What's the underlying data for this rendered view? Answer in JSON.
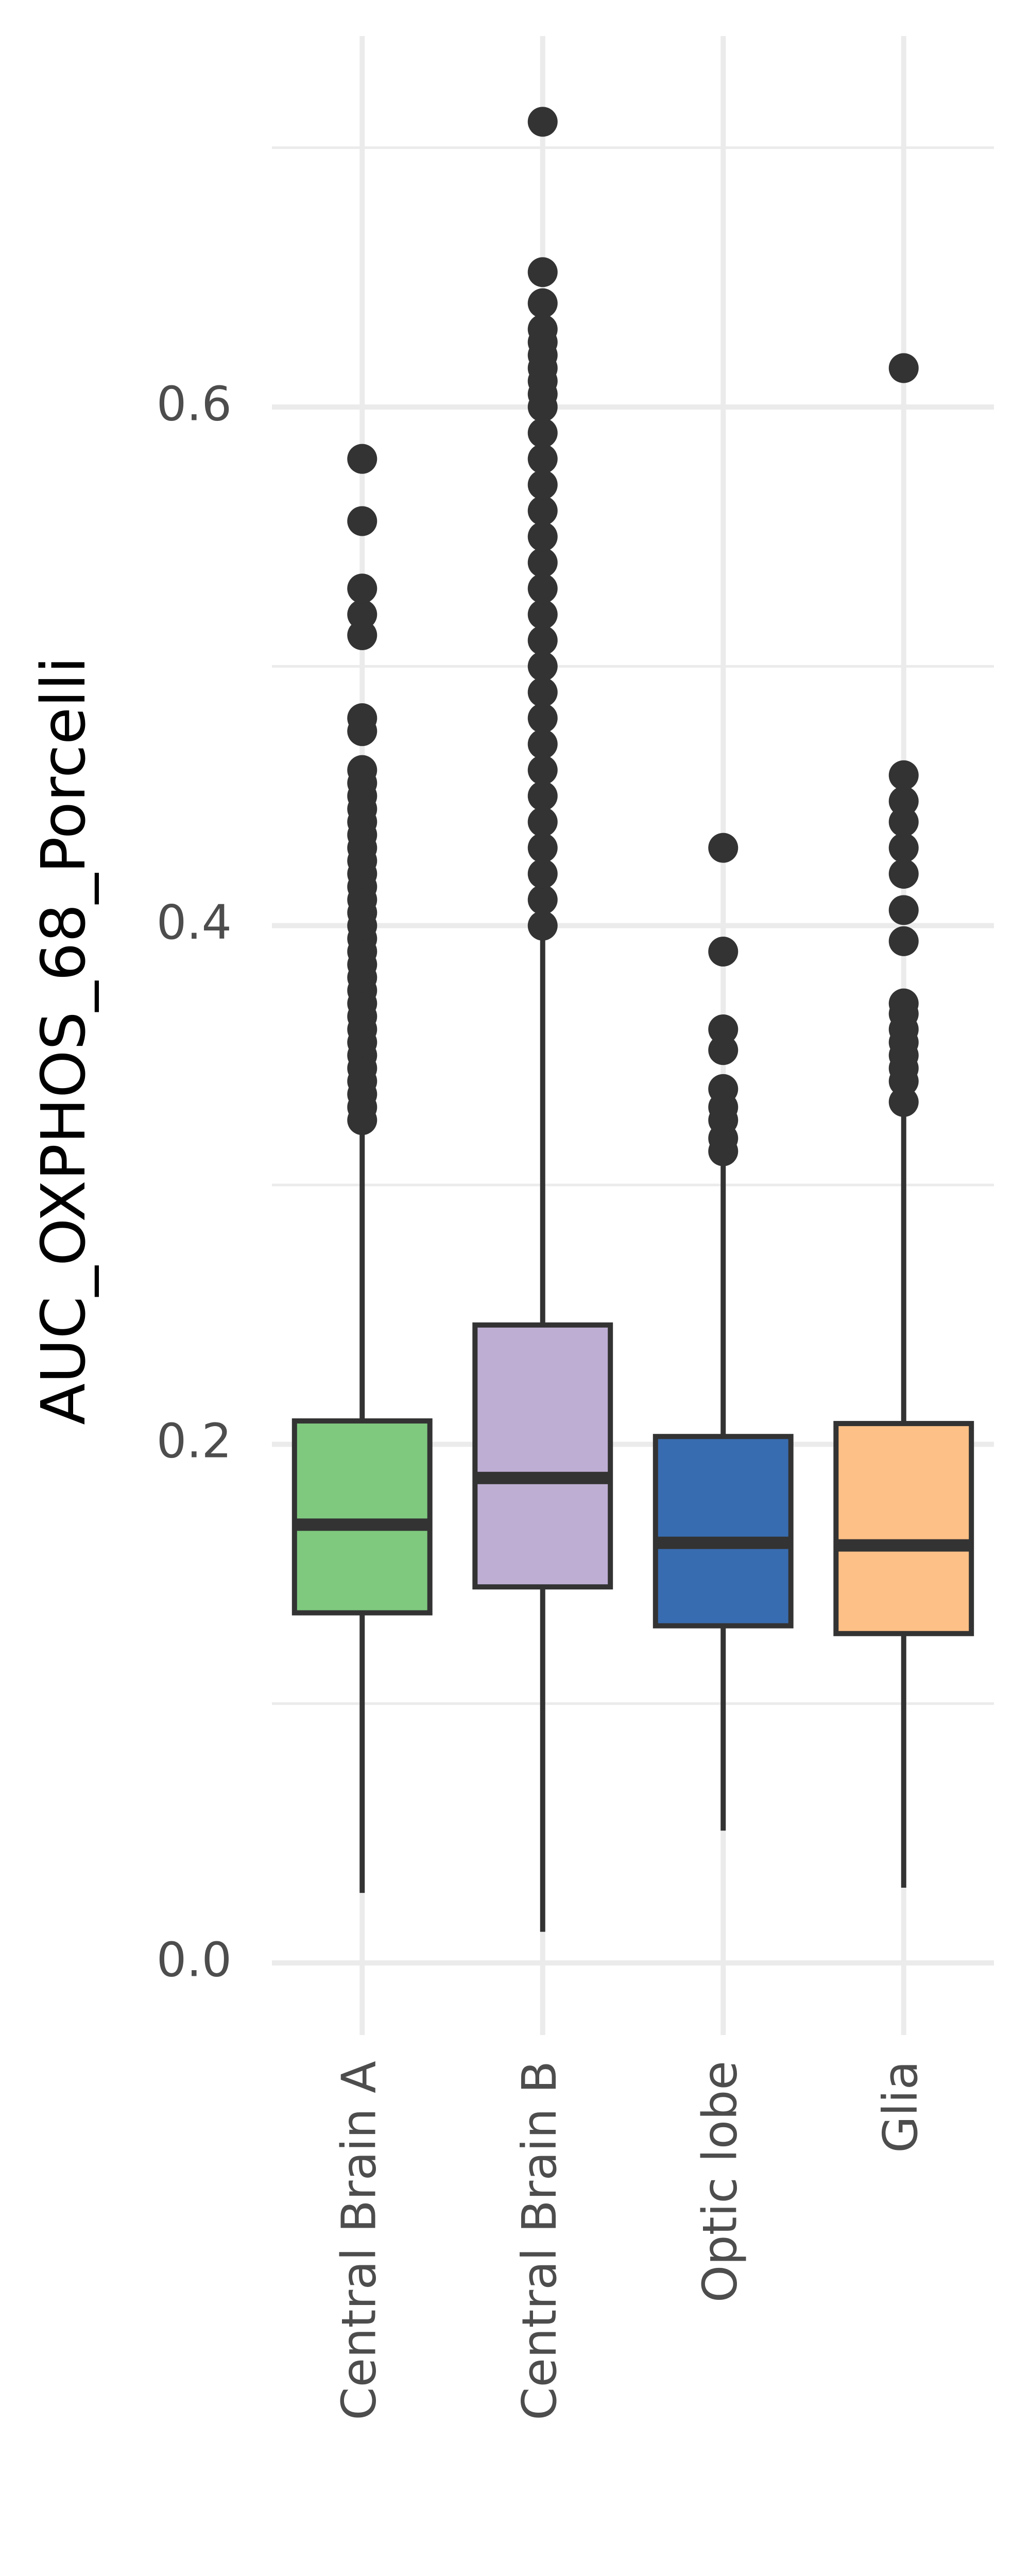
{
  "chart_data": {
    "type": "boxplot",
    "ylabel": "AUC_OXPHOS_68_Porcelli",
    "xlabel": "",
    "ylim": [
      -0.03,
      0.74
    ],
    "yticks": [
      0.0,
      0.2,
      0.4,
      0.6
    ],
    "ytick_labels": [
      "0.0",
      "0.2",
      "0.4",
      "0.6"
    ],
    "grid": true,
    "legend": "none",
    "categories": [
      "Central Brain A",
      "Central Brain B",
      "Optic lobe",
      "Glia"
    ],
    "colors": [
      "#7fc97f",
      "#beaed4",
      "#386cb0",
      "#fdc086"
    ],
    "boxes": [
      {
        "whisker_low": 0.027,
        "q1": 0.135,
        "median": 0.169,
        "q3": 0.209,
        "whisker_high": 0.32,
        "outliers": [
          0.325,
          0.33,
          0.335,
          0.34,
          0.345,
          0.35,
          0.355,
          0.36,
          0.365,
          0.37,
          0.375,
          0.38,
          0.385,
          0.39,
          0.395,
          0.4,
          0.405,
          0.41,
          0.415,
          0.42,
          0.425,
          0.43,
          0.435,
          0.44,
          0.445,
          0.45,
          0.455,
          0.46,
          0.475,
          0.48,
          0.512,
          0.52,
          0.53,
          0.556,
          0.58
        ]
      },
      {
        "whisker_low": 0.012,
        "q1": 0.145,
        "median": 0.187,
        "q3": 0.246,
        "whisker_high": 0.395,
        "outliers": [
          0.4,
          0.41,
          0.42,
          0.43,
          0.44,
          0.45,
          0.46,
          0.47,
          0.48,
          0.49,
          0.5,
          0.51,
          0.52,
          0.53,
          0.54,
          0.55,
          0.56,
          0.57,
          0.58,
          0.59,
          0.6,
          0.605,
          0.61,
          0.615,
          0.62,
          0.625,
          0.63,
          0.64,
          0.652,
          0.71
        ]
      },
      {
        "whisker_low": 0.051,
        "q1": 0.13,
        "median": 0.162,
        "q3": 0.203,
        "whisker_high": 0.31,
        "outliers": [
          0.313,
          0.318,
          0.325,
          0.33,
          0.337,
          0.352,
          0.36,
          0.39,
          0.43
        ]
      },
      {
        "whisker_low": 0.029,
        "q1": 0.127,
        "median": 0.161,
        "q3": 0.208,
        "whisker_high": 0.33,
        "outliers": [
          0.332,
          0.34,
          0.345,
          0.35,
          0.355,
          0.36,
          0.366,
          0.37,
          0.394,
          0.406,
          0.42,
          0.43,
          0.44,
          0.448,
          0.458,
          0.615
        ]
      }
    ]
  }
}
